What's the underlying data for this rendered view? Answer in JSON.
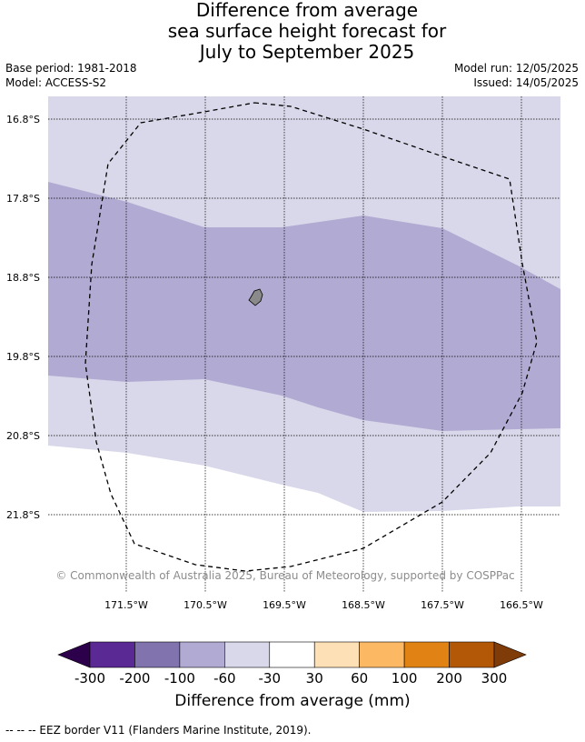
{
  "title": {
    "line1": "Difference from average",
    "line2": "sea surface height forecast for",
    "line3": "July to September 2025"
  },
  "meta": {
    "base_period": "Base period: 1981-2018",
    "model": "Model: ACCESS-S2",
    "model_run": "Model run: 12/05/2025",
    "issued": "Issued: 14/05/2025"
  },
  "map": {
    "lat_labels": [
      "16.8°S",
      "17.8°S",
      "18.8°S",
      "19.8°S",
      "20.8°S",
      "21.8°S"
    ],
    "lon_labels": [
      "171.5°W",
      "170.5°W",
      "169.5°W",
      "168.5°W",
      "167.5°W",
      "166.5°W"
    ],
    "credit": "© Commonwealth of Australia 2025, Bureau of Meteorology, supported by COSPPac",
    "colors": {
      "light_lavender": "#d8d8ea",
      "medium_lavender": "#b1aad2",
      "white": "#ffffff",
      "island": "#8a8a8a",
      "grid": "#000000"
    }
  },
  "colorbar": {
    "ticks": [
      "-300",
      "-200",
      "-100",
      "-60",
      "-30",
      "30",
      "60",
      "100",
      "200",
      "300"
    ],
    "colors": [
      "#2d004b",
      "#5a2994",
      "#8073ae",
      "#b1aad2",
      "#d8d8ea",
      "#ffffff",
      "#fee0b6",
      "#fdb863",
      "#e08214",
      "#b35806",
      "#7f3b08"
    ],
    "label": "Difference from average (mm)"
  },
  "legend_note": "-- -- -- EEZ border V11 (Flanders Marine Institute, 2019)."
}
